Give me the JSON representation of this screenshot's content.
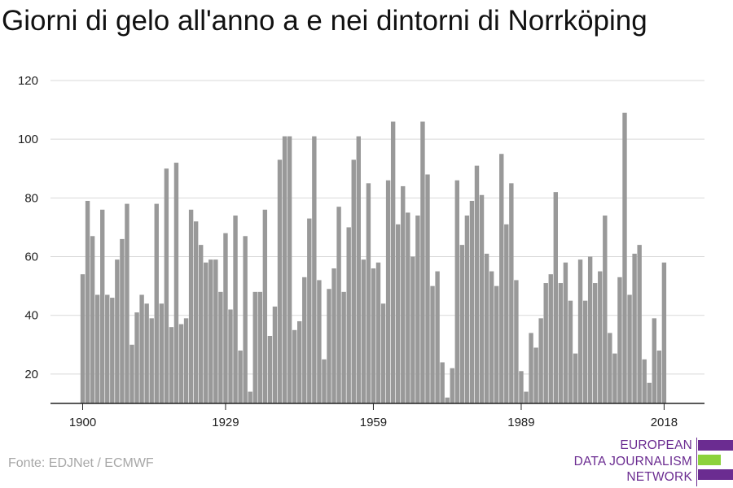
{
  "title": "Giorni di gelo all'anno a e nei dintorni di Norrköping",
  "source": "Fonte: EDJNet / ECMWF",
  "logo": {
    "lines": [
      "EUROPEAN",
      "DATA JOURNALISM",
      "NETWORK"
    ],
    "colors": {
      "purple": "#6b2c91",
      "green": "#8cd23c"
    }
  },
  "colors": {
    "bar": "#999999",
    "grid": "#d9d9d9",
    "axis": "#222222",
    "text": "#222222"
  },
  "chart_data": {
    "type": "bar",
    "title": "Giorni di gelo all'anno a e nei dintorni di Norrköping",
    "xlabel": "",
    "ylabel": "",
    "ylim": [
      10,
      120
    ],
    "yticks": [
      20,
      40,
      60,
      80,
      100,
      120
    ],
    "xticks": [
      1900,
      1929,
      1959,
      1989,
      2018
    ],
    "grid": true,
    "categories": [
      1900,
      1901,
      1902,
      1903,
      1904,
      1905,
      1906,
      1907,
      1908,
      1909,
      1910,
      1911,
      1912,
      1913,
      1914,
      1915,
      1916,
      1917,
      1918,
      1919,
      1920,
      1921,
      1922,
      1923,
      1924,
      1925,
      1926,
      1927,
      1928,
      1929,
      1930,
      1931,
      1932,
      1933,
      1934,
      1935,
      1936,
      1937,
      1938,
      1939,
      1940,
      1941,
      1942,
      1943,
      1944,
      1945,
      1946,
      1947,
      1948,
      1949,
      1950,
      1951,
      1952,
      1953,
      1954,
      1955,
      1956,
      1957,
      1958,
      1959,
      1960,
      1961,
      1962,
      1963,
      1964,
      1965,
      1966,
      1967,
      1968,
      1969,
      1970,
      1971,
      1972,
      1973,
      1974,
      1975,
      1976,
      1977,
      1978,
      1979,
      1980,
      1981,
      1982,
      1983,
      1984,
      1985,
      1986,
      1987,
      1988,
      1989,
      1990,
      1991,
      1992,
      1993,
      1994,
      1995,
      1996,
      1997,
      1998,
      1999,
      2000,
      2001,
      2002,
      2003,
      2004,
      2005,
      2006,
      2007,
      2008,
      2009,
      2010,
      2011,
      2012,
      2013,
      2014,
      2015,
      2016,
      2017,
      2018
    ],
    "values": [
      54,
      79,
      67,
      47,
      76,
      47,
      46,
      59,
      66,
      78,
      30,
      41,
      47,
      44,
      39,
      78,
      44,
      90,
      36,
      92,
      37,
      39,
      76,
      72,
      64,
      58,
      59,
      59,
      48,
      68,
      42,
      74,
      28,
      67,
      14,
      48,
      48,
      76,
      33,
      43,
      93,
      101,
      101,
      35,
      38,
      53,
      73,
      101,
      52,
      25,
      49,
      56,
      77,
      48,
      70,
      93,
      101,
      59,
      85,
      56,
      58,
      44,
      86,
      106,
      71,
      84,
      75,
      60,
      74,
      106,
      88,
      50,
      55,
      24,
      12,
      22,
      86,
      64,
      74,
      79,
      91,
      81,
      61,
      55,
      50,
      95,
      71,
      85,
      52,
      21,
      14,
      34,
      29,
      39,
      51,
      54,
      82,
      51,
      58,
      45,
      27,
      59,
      45,
      60,
      51,
      55,
      74,
      34,
      27,
      53,
      109,
      47,
      61,
      64,
      25,
      17,
      39,
      28,
      58
    ]
  }
}
